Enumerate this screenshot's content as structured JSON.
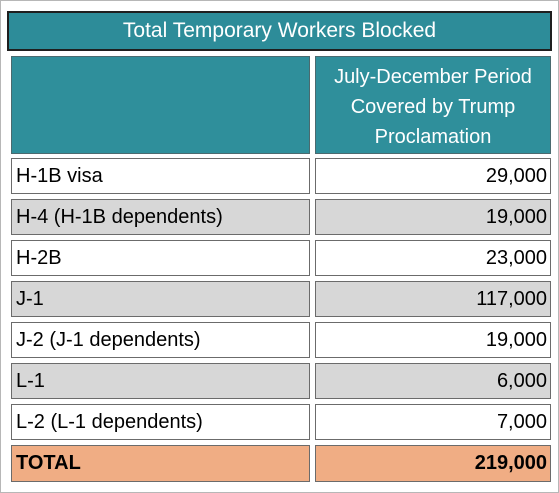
{
  "title": "Total Temporary Workers Blocked",
  "header": {
    "left": "",
    "right_line1": "July-December Period",
    "right_line2": "Covered by Trump",
    "right_line3": "Proclamation"
  },
  "rows": [
    {
      "label": "H-1B visa",
      "value": "29,000"
    },
    {
      "label": "H-4 (H-1B dependents)",
      "value": "19,000"
    },
    {
      "label": "H-2B",
      "value": "23,000"
    },
    {
      "label": "J-1",
      "value": "117,000"
    },
    {
      "label": "J-2 (J-1 dependents)",
      "value": "19,000"
    },
    {
      "label": "L-1",
      "value": "6,000"
    },
    {
      "label": "L-2 (L-1 dependents)",
      "value": "7,000"
    }
  ],
  "total": {
    "label": "TOTAL",
    "value": "219,000"
  },
  "colors": {
    "teal": "#2d8c99",
    "row_alt_gray": "#d7d7d7",
    "total_orange": "#f0ad84"
  }
}
